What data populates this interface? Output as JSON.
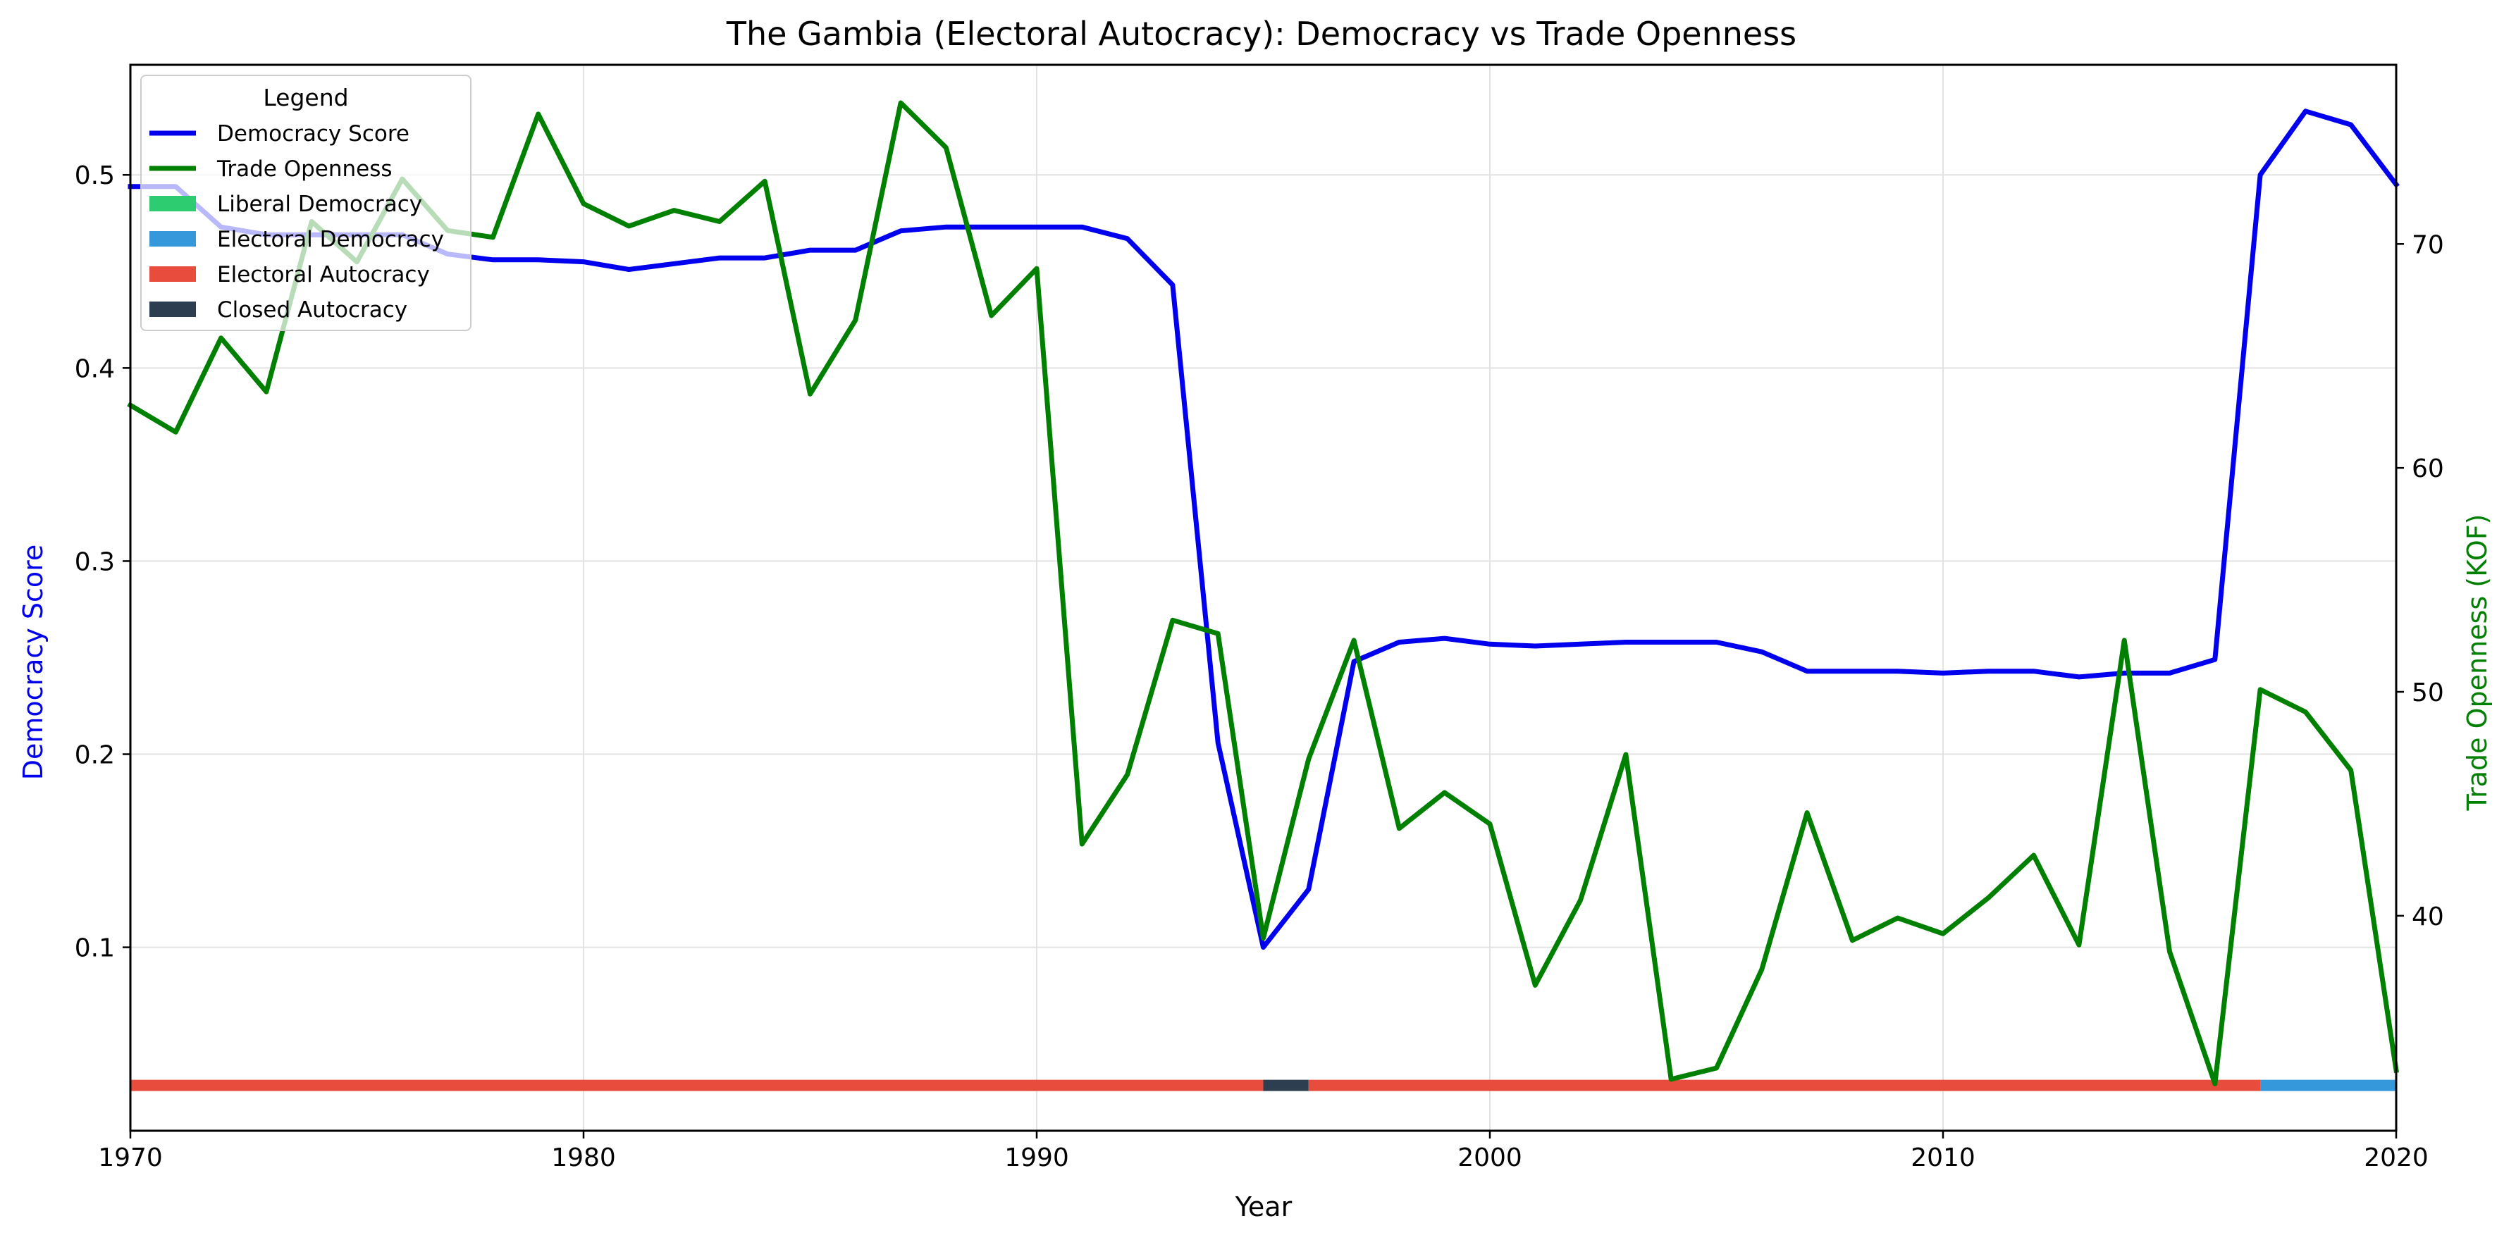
{
  "chart_data": {
    "type": "line",
    "title": "The Gambia (Electoral Autocracy): Democracy vs Trade Openness",
    "xlabel": "Year",
    "ylabel_left": "Democracy Score",
    "ylabel_right": "Trade Openness (KOF)",
    "xlim": [
      1970,
      2020
    ],
    "ylim_left": [
      0.005,
      0.557
    ],
    "ylim_right": [
      30.4,
      78.0
    ],
    "grid": true,
    "legend_title": "Legend",
    "legend_position": "top-left",
    "x_ticks": [
      1970,
      1980,
      1990,
      2000,
      2010,
      2020
    ],
    "y_left_ticks": [
      0.1,
      0.2,
      0.3,
      0.4,
      0.5
    ],
    "y_right_ticks": [
      40,
      50,
      60,
      70
    ],
    "x": [
      1970,
      1971,
      1972,
      1973,
      1974,
      1975,
      1976,
      1977,
      1978,
      1979,
      1980,
      1981,
      1982,
      1983,
      1984,
      1985,
      1986,
      1987,
      1988,
      1989,
      1990,
      1991,
      1992,
      1993,
      1994,
      1995,
      1996,
      1997,
      1998,
      1999,
      2000,
      2001,
      2002,
      2003,
      2004,
      2005,
      2006,
      2007,
      2008,
      2009,
      2010,
      2011,
      2012,
      2013,
      2014,
      2015,
      2016,
      2017,
      2018,
      2019,
      2020
    ],
    "series": [
      {
        "name": "Democracy Score",
        "axis": "left",
        "color": "#0000ee",
        "values": [
          0.494,
          0.494,
          0.473,
          0.469,
          0.469,
          0.469,
          0.469,
          0.459,
          0.456,
          0.456,
          0.455,
          0.451,
          0.454,
          0.457,
          0.457,
          0.461,
          0.461,
          0.471,
          0.473,
          0.473,
          0.473,
          0.473,
          0.467,
          0.443,
          0.206,
          0.1,
          0.13,
          0.248,
          0.258,
          0.26,
          0.257,
          0.256,
          0.257,
          0.258,
          0.258,
          0.258,
          0.253,
          0.243,
          0.243,
          0.243,
          0.242,
          0.243,
          0.243,
          0.24,
          0.242,
          0.242,
          0.249,
          0.5,
          0.533,
          0.526,
          0.495
        ]
      },
      {
        "name": "Trade Openness",
        "axis": "right",
        "color": "#008000",
        "values": [
          62.8,
          61.6,
          65.8,
          63.4,
          71.0,
          69.2,
          72.9,
          70.6,
          70.3,
          75.8,
          71.8,
          70.8,
          71.5,
          71.0,
          72.8,
          63.3,
          66.6,
          76.3,
          74.3,
          66.8,
          68.9,
          43.2,
          46.3,
          53.2,
          52.6,
          39.0,
          47.0,
          52.3,
          43.9,
          45.5,
          44.1,
          36.9,
          40.7,
          47.2,
          32.7,
          33.2,
          37.6,
          44.6,
          38.9,
          39.9,
          39.2,
          40.8,
          42.7,
          38.7,
          52.3,
          38.4,
          32.5,
          50.1,
          49.1,
          46.5,
          33.1
        ]
      }
    ],
    "regime_bar": {
      "level": 0.0285,
      "segments": [
        {
          "regime": "Electoral Autocracy",
          "from": 1970,
          "to": 1995
        },
        {
          "regime": "Closed Autocracy",
          "from": 1995,
          "to": 1996
        },
        {
          "regime": "Electoral Autocracy",
          "from": 1996,
          "to": 2017
        },
        {
          "regime": "Electoral Democracy",
          "from": 2017,
          "to": 2020
        }
      ]
    },
    "regime_colors": {
      "Liberal Democracy": "#2ecc71",
      "Electoral Democracy": "#3498db",
      "Electoral Autocracy": "#e74c3c",
      "Closed Autocracy": "#2c3e50"
    },
    "legend": [
      {
        "label": "Democracy Score",
        "kind": "line",
        "color": "#0000ee"
      },
      {
        "label": "Trade Openness",
        "kind": "line",
        "color": "#008000"
      },
      {
        "label": "Liberal Democracy",
        "kind": "patch",
        "color": "#2ecc71"
      },
      {
        "label": "Electoral Democracy",
        "kind": "patch",
        "color": "#3498db"
      },
      {
        "label": "Electoral Autocracy",
        "kind": "patch",
        "color": "#e74c3c"
      },
      {
        "label": "Closed Autocracy",
        "kind": "patch",
        "color": "#2c3e50"
      }
    ]
  }
}
